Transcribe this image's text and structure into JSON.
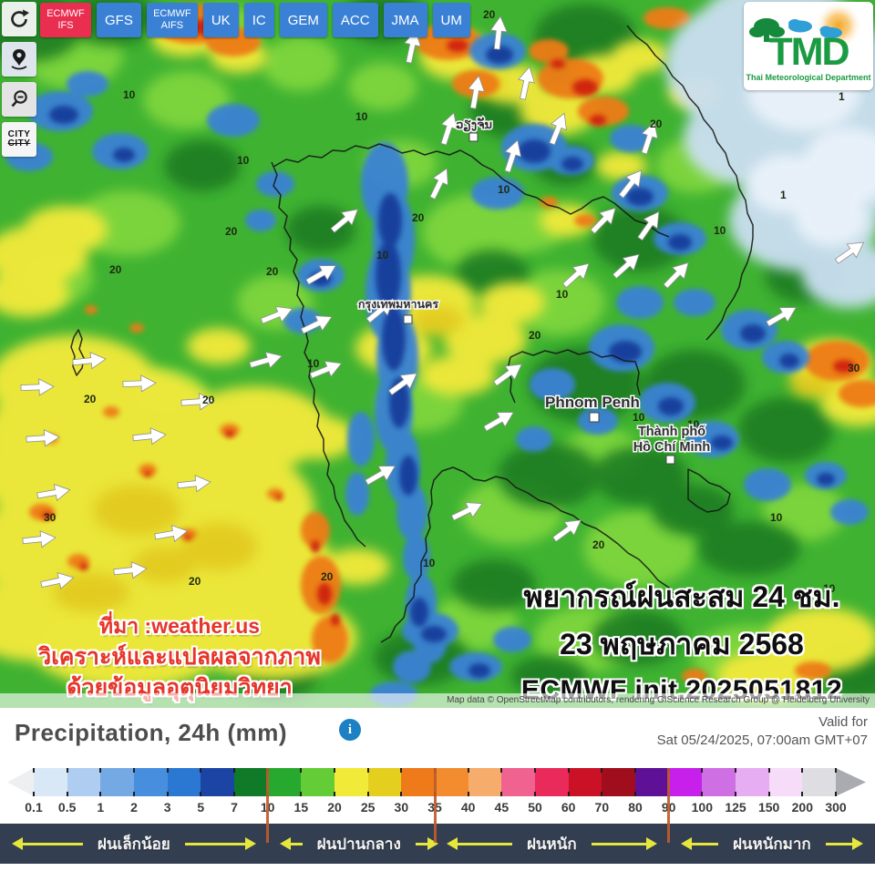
{
  "toolbar": {
    "models": [
      {
        "label": "ECMWF IFS",
        "active": true
      },
      {
        "label": "GFS",
        "active": false
      },
      {
        "label": "ECMWF AIFS",
        "active": false
      },
      {
        "label": "UK",
        "active": false
      },
      {
        "label": "IC",
        "active": false
      },
      {
        "label": "GEM",
        "active": false
      },
      {
        "label": "ACC",
        "active": false
      },
      {
        "label": "JMA",
        "active": false
      },
      {
        "label": "UM",
        "active": false
      }
    ]
  },
  "side_controls": {
    "city_label": "CITY"
  },
  "logo": {
    "acronym": "TMD",
    "subtitle": "Thai Meteorological Department"
  },
  "map": {
    "cities": {
      "vientiane": "ວຽງຈັນ",
      "bangkok": "กรุงเทพมหานคร",
      "phnom_penh": "Phnom Penh",
      "hcmc_line1": "Thành phố",
      "hcmc_line2": "Hồ Chí Minh"
    },
    "contours": {
      "v1": "1",
      "v10": "10",
      "v20": "20",
      "v30": "30"
    },
    "source_note": {
      "line1": "ที่มา :weather.us",
      "line2": "วิเคราะห์และแปลผลจากภาพ",
      "line3": "ด้วยข้อมูลอุตุนิยมวิทยา"
    },
    "forecast_title": {
      "line1": "พยากรณ์ฝนสะสม 24 ชม.",
      "line2": "23 พฤษภาคม 2568",
      "line3": "ECMWF init.2025051812"
    },
    "attribution": "Map data © OpenStreetMap contributors, rendering GIScience Research Group @ Heidelberg University"
  },
  "legend": {
    "title": "Precipitation, 24h (mm)",
    "valid_line1": "Valid for",
    "valid_line2": "Sat 05/24/2025, 07:00am GMT+07",
    "scale": {
      "boundaries": [
        "0.1",
        "0.5",
        "1",
        "2",
        "3",
        "5",
        "7",
        "10",
        "15",
        "20",
        "25",
        "30",
        "35",
        "40",
        "45",
        "50",
        "60",
        "70",
        "80",
        "90",
        "100",
        "125",
        "150",
        "200",
        "300"
      ],
      "colors": [
        "#d9e8f7",
        "#aecdf0",
        "#74a9e4",
        "#478ede",
        "#2a78d2",
        "#1b44a4",
        "#0f7a28",
        "#27a82e",
        "#63cc36",
        "#f2ea38",
        "#e5cf1e",
        "#ee7a1a",
        "#f28c2e",
        "#f6ad6c",
        "#f0628f",
        "#e92a5a",
        "#ca1126",
        "#a00d1c",
        "#5e1096",
        "#c620ea",
        "#cf6fe4",
        "#e7adf2",
        "#f6dcf8",
        "#dedee2"
      ],
      "divider_values": [
        "10",
        "35",
        "90"
      ]
    },
    "categories": [
      {
        "label": "ฝนเล็กน้อย"
      },
      {
        "label": "ฝนปานกลาง"
      },
      {
        "label": "ฝนหนัก"
      },
      {
        "label": "ฝนหนักมาก"
      }
    ]
  },
  "colors": {
    "model_active": "#ea2e50",
    "model_button": "#3a81d6",
    "category_bar_bg": "#333e51",
    "divider_orange": "#bf5b2b",
    "arrow_yellow": "#e6e63c",
    "info_icon_blue": "#1b80c4"
  }
}
